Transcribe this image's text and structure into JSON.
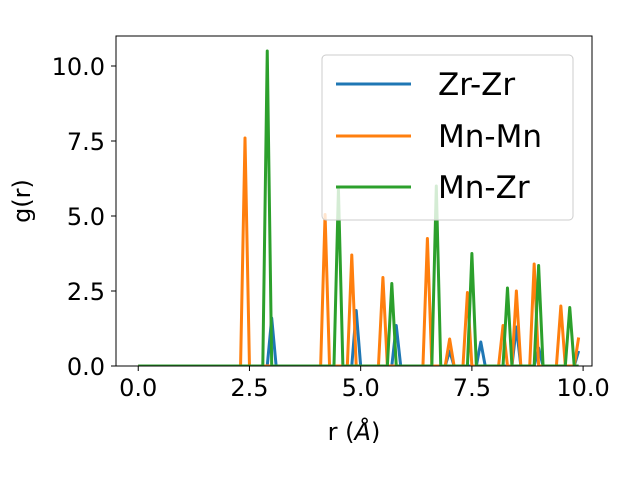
{
  "chart_data": {
    "type": "line",
    "xlabel": "r (",
    "xlabel_unit": "Å",
    "xlabel_close": ")",
    "ylabel": "g(r)",
    "xlim": [
      -0.5,
      10.2
    ],
    "ylim": [
      0,
      11
    ],
    "xticks": [
      0.0,
      2.5,
      5.0,
      7.5,
      10.0
    ],
    "xtick_labels": [
      "0.0",
      "2.5",
      "5.0",
      "7.5",
      "10.0"
    ],
    "yticks": [
      0.0,
      2.5,
      5.0,
      7.5,
      10.0
    ],
    "ytick_labels": [
      "0.0",
      "2.5",
      "5.0",
      "7.5",
      "10.0"
    ],
    "grid": false,
    "legend_position": "top-right",
    "series": [
      {
        "name": "Zr-Zr",
        "color": "#1f77b4",
        "points": [
          [
            0.0,
            0
          ],
          [
            2.9,
            0
          ],
          [
            3.0,
            1.6
          ],
          [
            3.1,
            0
          ],
          [
            4.8,
            0
          ],
          [
            4.9,
            1.85
          ],
          [
            5.0,
            0
          ],
          [
            5.7,
            0
          ],
          [
            5.8,
            1.35
          ],
          [
            5.9,
            0
          ],
          [
            6.9,
            0
          ],
          [
            7.0,
            0.5
          ],
          [
            7.1,
            0
          ],
          [
            7.6,
            0
          ],
          [
            7.7,
            0.8
          ],
          [
            7.8,
            0
          ],
          [
            8.4,
            0
          ],
          [
            8.5,
            1.3
          ],
          [
            8.6,
            0
          ],
          [
            8.9,
            0
          ],
          [
            9.0,
            0.6
          ],
          [
            9.1,
            0
          ],
          [
            9.8,
            0
          ],
          [
            9.9,
            0.5
          ]
        ]
      },
      {
        "name": "Mn-Mn",
        "color": "#ff7f0e",
        "points": [
          [
            0.0,
            0
          ],
          [
            2.3,
            0
          ],
          [
            2.4,
            7.6
          ],
          [
            2.5,
            0
          ],
          [
            4.1,
            0
          ],
          [
            4.2,
            5.05
          ],
          [
            4.3,
            0
          ],
          [
            4.7,
            0
          ],
          [
            4.8,
            3.7
          ],
          [
            4.9,
            0
          ],
          [
            5.4,
            0
          ],
          [
            5.5,
            2.95
          ],
          [
            5.6,
            0
          ],
          [
            6.4,
            0
          ],
          [
            6.5,
            4.25
          ],
          [
            6.6,
            0
          ],
          [
            6.9,
            0
          ],
          [
            7.0,
            0.9
          ],
          [
            7.1,
            0
          ],
          [
            7.3,
            0
          ],
          [
            7.4,
            2.45
          ],
          [
            7.5,
            0
          ],
          [
            8.1,
            0
          ],
          [
            8.2,
            1.35
          ],
          [
            8.3,
            0
          ],
          [
            8.4,
            0
          ],
          [
            8.5,
            2.5
          ],
          [
            8.6,
            0
          ],
          [
            8.8,
            0
          ],
          [
            8.9,
            3.4
          ],
          [
            9.0,
            0
          ],
          [
            9.4,
            0
          ],
          [
            9.5,
            2.0
          ],
          [
            9.6,
            0
          ],
          [
            9.8,
            0
          ],
          [
            9.9,
            0.95
          ]
        ]
      },
      {
        "name": "Mn-Zr",
        "color": "#2ca02c",
        "points": [
          [
            0.0,
            0
          ],
          [
            2.8,
            0
          ],
          [
            2.9,
            10.5
          ],
          [
            3.0,
            0
          ],
          [
            4.4,
            0
          ],
          [
            4.5,
            5.9
          ],
          [
            4.6,
            0
          ],
          [
            5.6,
            0
          ],
          [
            5.7,
            2.75
          ],
          [
            5.8,
            0
          ],
          [
            6.6,
            0
          ],
          [
            6.7,
            6.0
          ],
          [
            6.8,
            0
          ],
          [
            7.4,
            0
          ],
          [
            7.5,
            3.75
          ],
          [
            7.6,
            0
          ],
          [
            8.2,
            0
          ],
          [
            8.3,
            2.6
          ],
          [
            8.4,
            0
          ],
          [
            8.9,
            0
          ],
          [
            9.0,
            3.35
          ],
          [
            9.1,
            0
          ],
          [
            9.6,
            0
          ],
          [
            9.7,
            1.95
          ],
          [
            9.8,
            0
          ],
          [
            9.9,
            0
          ]
        ]
      }
    ]
  }
}
